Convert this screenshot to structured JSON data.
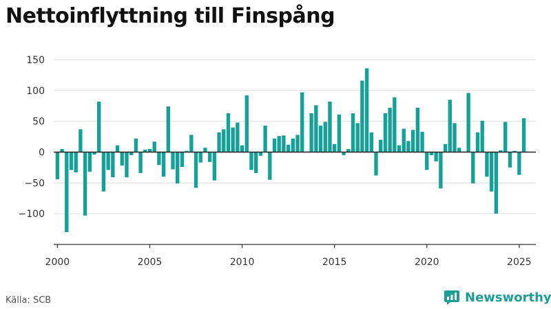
{
  "title": "Nettoinflyttning till Finspång",
  "source": "Källa: SCB",
  "brand": {
    "name": "Newsworthy",
    "icon": "newsworthy-logo-icon",
    "color": "#1b9e95"
  },
  "colors": {
    "bar": "#14a199",
    "zero_line": "#222222",
    "grid": "#dddddd",
    "axis": "#333333"
  },
  "chart_data": {
    "type": "bar",
    "title": "Nettoinflyttning till Finspång",
    "xlabel": "",
    "ylabel": "",
    "xlim": [
      1999.8,
      2025.9
    ],
    "ylim": [
      -150,
      160
    ],
    "y_ticks": [
      -100,
      -50,
      0,
      50,
      100,
      150
    ],
    "y_tick_labels": [
      "−100",
      "−50",
      "0",
      "50",
      "100",
      "150"
    ],
    "x_ticks": [
      2000,
      2005,
      2010,
      2015,
      2020,
      2025
    ],
    "x_tick_labels": [
      "2000",
      "2005",
      "2010",
      "2015",
      "2020",
      "2025"
    ],
    "grid": true,
    "x": [
      2000.0,
      2000.25,
      2000.5,
      2000.75,
      2001.0,
      2001.25,
      2001.5,
      2001.75,
      2002.0,
      2002.25,
      2002.5,
      2002.75,
      2003.0,
      2003.25,
      2003.5,
      2003.75,
      2004.0,
      2004.25,
      2004.5,
      2004.75,
      2005.0,
      2005.25,
      2005.5,
      2005.75,
      2006.0,
      2006.25,
      2006.5,
      2006.75,
      2007.0,
      2007.25,
      2007.5,
      2007.75,
      2008.0,
      2008.25,
      2008.5,
      2008.75,
      2009.0,
      2009.25,
      2009.5,
      2009.75,
      2010.0,
      2010.25,
      2010.5,
      2010.75,
      2011.0,
      2011.25,
      2011.5,
      2011.75,
      2012.0,
      2012.25,
      2012.5,
      2012.75,
      2013.0,
      2013.25,
      2013.5,
      2013.75,
      2014.0,
      2014.25,
      2014.5,
      2014.75,
      2015.0,
      2015.25,
      2015.5,
      2015.75,
      2016.0,
      2016.25,
      2016.5,
      2016.75,
      2017.0,
      2017.25,
      2017.5,
      2017.75,
      2018.0,
      2018.25,
      2018.5,
      2018.75,
      2019.0,
      2019.25,
      2019.5,
      2019.75,
      2020.0,
      2020.25,
      2020.5,
      2020.75,
      2021.0,
      2021.25,
      2021.5,
      2021.75,
      2022.0,
      2022.25,
      2022.5,
      2022.75,
      2023.0,
      2023.25,
      2023.5,
      2023.75,
      2024.0,
      2024.25,
      2024.5,
      2024.75,
      2025.0,
      2025.25
    ],
    "values": [
      -44,
      5,
      -130,
      -29,
      -33,
      37,
      -103,
      -32,
      -4,
      82,
      -64,
      -29,
      -41,
      11,
      -22,
      -41,
      -5,
      22,
      -34,
      4,
      5,
      17,
      -21,
      -40,
      74,
      -28,
      -51,
      -24,
      2,
      28,
      -58,
      -17,
      7,
      -16,
      -46,
      32,
      37,
      63,
      40,
      48,
      11,
      92,
      -29,
      -34,
      -6,
      43,
      -45,
      22,
      26,
      27,
      12,
      22,
      28,
      97,
      1,
      63,
      76,
      43,
      49,
      82,
      13,
      61,
      -5,
      5,
      63,
      47,
      116,
      136,
      32,
      -38,
      20,
      63,
      72,
      89,
      11,
      38,
      18,
      36,
      72,
      33,
      -29,
      -5,
      -15,
      -59,
      13,
      85,
      47,
      7,
      1,
      96,
      -51,
      32,
      51,
      -40,
      -64,
      -100,
      3,
      49,
      -25,
      2,
      -37,
      55
    ]
  }
}
